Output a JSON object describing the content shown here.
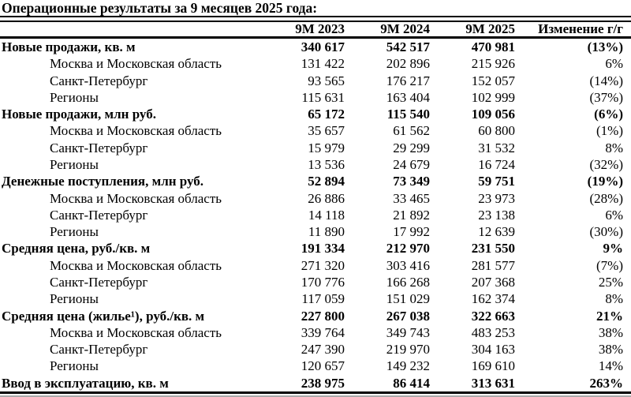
{
  "title": "Операционные результаты за 9 месяцев 2025 года:",
  "table": {
    "columns": [
      "9М 2023",
      "9М 2024",
      "9М 2025",
      "Изменение г/г"
    ],
    "rows": [
      {
        "label": "Новые продажи, кв. м",
        "level": 0,
        "values": [
          "340 617",
          "542 517",
          "470 981",
          "(13%)"
        ]
      },
      {
        "label": "Москва и Московская область",
        "level": 1,
        "values": [
          "131 422",
          "202 896",
          "215 926",
          "6%"
        ]
      },
      {
        "label": "Санкт-Петербург",
        "level": 1,
        "values": [
          "93 565",
          "176 217",
          "152 057",
          "(14%)"
        ]
      },
      {
        "label": "Регионы",
        "level": 1,
        "values": [
          "115 631",
          "163 404",
          "102 999",
          "(37%)"
        ]
      },
      {
        "label": "Новые продажи, млн руб.",
        "level": 0,
        "values": [
          "65 172",
          "115 540",
          "109 056",
          "(6%)"
        ]
      },
      {
        "label": "Москва и Московская область",
        "level": 1,
        "values": [
          "35 657",
          "61 562",
          "60 800",
          "(1%)"
        ]
      },
      {
        "label": "Санкт-Петербург",
        "level": 1,
        "values": [
          "15 979",
          "29 299",
          "31 532",
          "8%"
        ]
      },
      {
        "label": "Регионы",
        "level": 1,
        "values": [
          "13 536",
          "24 679",
          "16 724",
          "(32%)"
        ]
      },
      {
        "label": "Денежные поступления, млн руб.",
        "level": 0,
        "values": [
          "52 894",
          "73 349",
          "59 751",
          "(19%)"
        ]
      },
      {
        "label": "Москва и Московская область",
        "level": 1,
        "values": [
          "26 886",
          "33 465",
          "23 973",
          "(28%)"
        ]
      },
      {
        "label": "Санкт-Петербург",
        "level": 1,
        "values": [
          "14 118",
          "21 892",
          "23 138",
          "6%"
        ]
      },
      {
        "label": "Регионы",
        "level": 1,
        "values": [
          "11 890",
          "17 992",
          "12 639",
          "(30%)"
        ]
      },
      {
        "label": "Средняя цена, руб./кв. м",
        "level": 0,
        "values": [
          "191 334",
          "212 970",
          "231 550",
          "9%"
        ]
      },
      {
        "label": "Москва и Московская область",
        "level": 1,
        "values": [
          "271 320",
          "303 416",
          "281 577",
          "(7%)"
        ]
      },
      {
        "label": "Санкт-Петербург",
        "level": 1,
        "values": [
          "170 776",
          "166 268",
          "207 368",
          "25%"
        ]
      },
      {
        "label": "Регионы",
        "level": 1,
        "values": [
          "117 059",
          "151 029",
          "162 374",
          "8%"
        ]
      },
      {
        "label": "Средняя цена (жилье¹), руб./кв. м",
        "level": 0,
        "values": [
          "227 800",
          "267 038",
          "322 663",
          "21%"
        ]
      },
      {
        "label": "Москва и Московская область",
        "level": 1,
        "values": [
          "339 764",
          "349 743",
          "483 253",
          "38%"
        ]
      },
      {
        "label": "Санкт-Петербург",
        "level": 1,
        "values": [
          "247 390",
          "219 970",
          "304 163",
          "38%"
        ]
      },
      {
        "label": "Регионы",
        "level": 1,
        "values": [
          "120 657",
          "149 232",
          "169 610",
          "14%"
        ]
      },
      {
        "label": "Ввод в эксплуатацию, кв. м",
        "level": 0,
        "values": [
          "238 975",
          "86 414",
          "313 631",
          "263%"
        ]
      }
    ],
    "colors": {
      "text": "#000000",
      "rule": "#000000",
      "bottom_edge": "#ababab"
    }
  }
}
